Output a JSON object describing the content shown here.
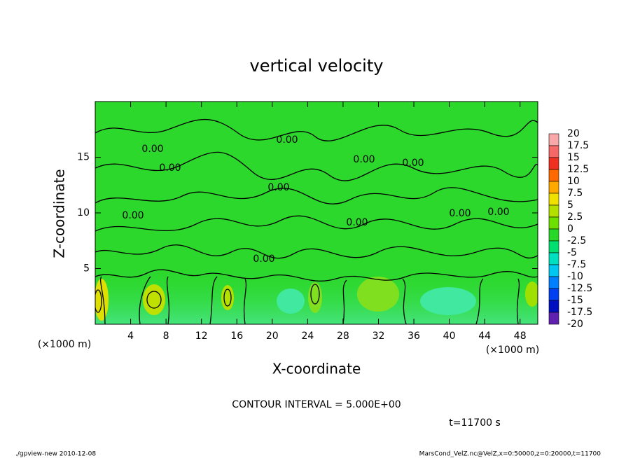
{
  "chart_data": {
    "type": "contour",
    "title": "vertical velocity",
    "xlabel": "X-coordinate",
    "ylabel": "Z-coordinate",
    "x_unit": "(×1000 m)",
    "xlim": [
      0,
      50
    ],
    "xticks": [
      4,
      8,
      12,
      16,
      20,
      24,
      28,
      32,
      36,
      40,
      44,
      48
    ],
    "ylim": [
      0,
      20
    ],
    "yticks": [
      5,
      10,
      15
    ],
    "colorbar": {
      "levels": [
        20,
        17.5,
        15,
        12.5,
        10,
        7.5,
        5,
        2.5,
        0,
        -2.5,
        -5,
        -7.5,
        -10,
        -12.5,
        -15,
        -17.5,
        -20
      ],
      "colors": [
        "#f8a8a8",
        "#f46868",
        "#f03020",
        "#ff6a00",
        "#ffa800",
        "#f0e000",
        "#b4e000",
        "#6ee000",
        "#28d828",
        "#00e070",
        "#00e0c0",
        "#00c8f0",
        "#0080ff",
        "#0040f0",
        "#0010c0",
        "#6020b0"
      ]
    },
    "contour_labels": [
      "0.00",
      "0.00",
      "0.00",
      "0.00",
      "0.00",
      "0.00",
      "0.00",
      "0.00",
      "0.00",
      "0.00",
      "0.00"
    ],
    "annotations": [
      "CONTOUR INTERVAL = 5.000E+00",
      "t=11700 s"
    ],
    "footer_left": "./gpview-new  2010-12-08",
    "footer_right": "MarsCond_VelZ.nc@VelZ,x=0:50000,z=0:20000,t=11700"
  }
}
